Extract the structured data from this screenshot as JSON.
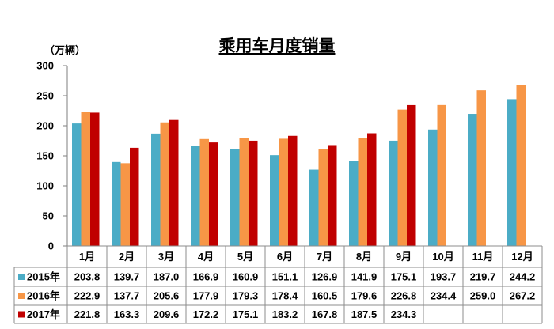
{
  "chart_data": {
    "type": "bar",
    "title": "乘用车月度销量",
    "ylabel": "（万辆）",
    "xlabel": "",
    "categories": [
      "1月",
      "2月",
      "3月",
      "4月",
      "5月",
      "6月",
      "7月",
      "8月",
      "9月",
      "10月",
      "11月",
      "12月"
    ],
    "ylim": [
      0,
      300
    ],
    "yticks": [
      0,
      50,
      100,
      150,
      200,
      250,
      300
    ],
    "grid": false,
    "legend": "data-table-left",
    "series": [
      {
        "name": "2015年",
        "color": "#4bacc6",
        "values": [
          203.8,
          139.7,
          187.0,
          166.9,
          160.9,
          151.1,
          126.9,
          141.9,
          175.1,
          193.7,
          219.7,
          244.2
        ]
      },
      {
        "name": "2016年",
        "color": "#f79646",
        "values": [
          222.9,
          137.7,
          205.6,
          177.9,
          179.3,
          178.4,
          160.5,
          179.6,
          226.8,
          234.4,
          259.0,
          267.2
        ]
      },
      {
        "name": "2017年",
        "color": "#c00000",
        "values": [
          221.8,
          163.3,
          209.6,
          172.2,
          175.1,
          183.2,
          167.8,
          187.5,
          234.3,
          null,
          null,
          null
        ]
      }
    ]
  }
}
